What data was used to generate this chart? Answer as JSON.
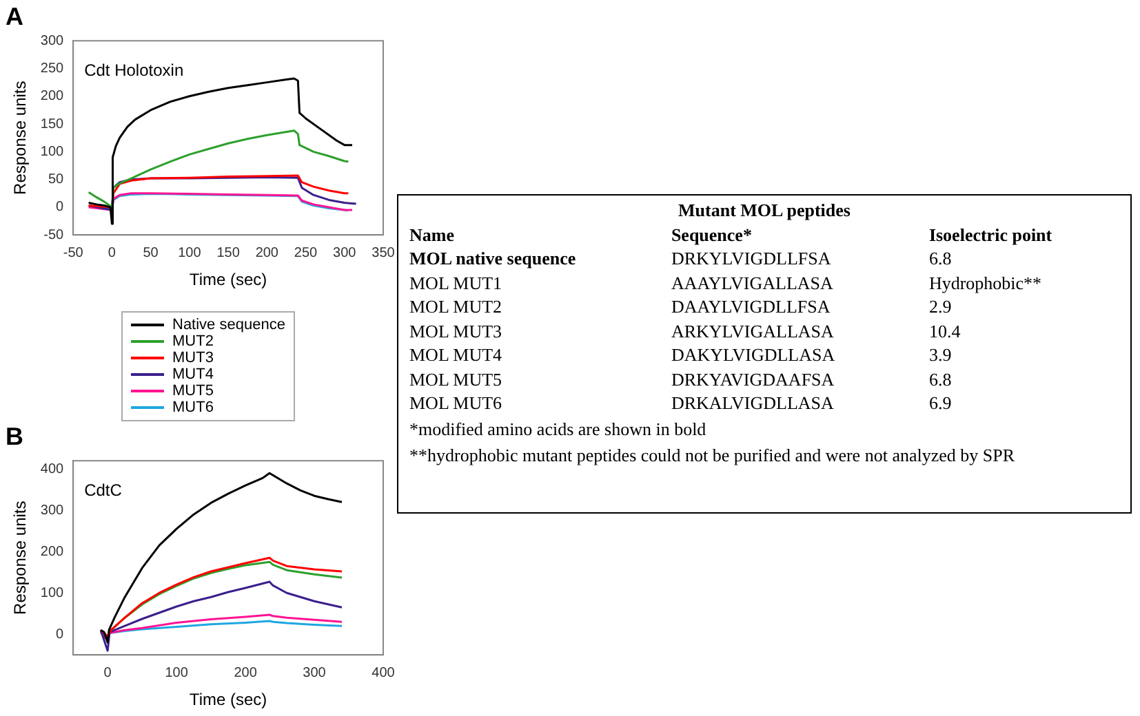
{
  "chart_data": [
    {
      "type": "line",
      "title": "A",
      "xlabel": "Time (sec)",
      "ylabel": "Response units",
      "annotations": [
        "Cdt Holotoxin"
      ],
      "xlim": [
        -50,
        350
      ],
      "xticks": [
        -50,
        0,
        50,
        100,
        150,
        200,
        250,
        300,
        350
      ],
      "ylim": [
        -50,
        300
      ],
      "yticks": [
        -50,
        0,
        50,
        100,
        150,
        200,
        250,
        300
      ],
      "legend": "bottom",
      "grid": false,
      "marker": "none",
      "series": [
        {
          "name": "Native sequence",
          "color": "#000000",
          "x": [
            -30,
            -20,
            -10,
            -2,
            0,
            1,
            5,
            10,
            20,
            30,
            50,
            75,
            100,
            125,
            150,
            175,
            200,
            225,
            235,
            240,
            242,
            250,
            270,
            290,
            300,
            310
          ],
          "values": [
            8,
            5,
            3,
            0,
            -30,
            90,
            110,
            125,
            145,
            158,
            175,
            190,
            200,
            208,
            215,
            220,
            225,
            230,
            232,
            228,
            170,
            160,
            140,
            120,
            112,
            112
          ]
        },
        {
          "name": "MUT2",
          "color": "#2ca02c",
          "x": [
            -30,
            -20,
            -10,
            0,
            2,
            10,
            25,
            50,
            75,
            100,
            125,
            150,
            175,
            200,
            235,
            240,
            242,
            260,
            280,
            300,
            305
          ],
          "values": [
            27,
            18,
            10,
            0,
            35,
            43,
            52,
            68,
            82,
            95,
            105,
            115,
            123,
            130,
            138,
            132,
            112,
            100,
            92,
            83,
            82
          ]
        },
        {
          "name": "MUT3",
          "color": "#ff0000",
          "x": [
            -30,
            0,
            2,
            10,
            25,
            50,
            100,
            150,
            200,
            240,
            245,
            260,
            280,
            300,
            305
          ],
          "values": [
            3,
            0,
            25,
            42,
            48,
            52,
            53,
            55,
            56,
            57,
            45,
            37,
            30,
            25,
            25
          ]
        },
        {
          "name": "MUT4",
          "color": "#3b1f8c",
          "x": [
            -30,
            0,
            2,
            10,
            25,
            50,
            100,
            150,
            200,
            240,
            245,
            260,
            280,
            300,
            315
          ],
          "values": [
            3,
            -5,
            35,
            45,
            50,
            52,
            52,
            53,
            54,
            53,
            35,
            22,
            13,
            8,
            6
          ]
        },
        {
          "name": "MUT5",
          "color": "#ff1493",
          "x": [
            -30,
            0,
            2,
            10,
            25,
            50,
            100,
            150,
            200,
            240,
            245,
            260,
            280,
            300,
            310
          ],
          "values": [
            0,
            -5,
            15,
            22,
            25,
            25,
            24,
            23,
            22,
            21,
            12,
            5,
            0,
            -5,
            -5
          ]
        },
        {
          "name": "MUT6",
          "color": "#1ea7e1",
          "x": [
            -30,
            0,
            2,
            10,
            25,
            50,
            100,
            150,
            200,
            240,
            245,
            260,
            280,
            300,
            305
          ],
          "values": [
            1,
            -3,
            13,
            20,
            23,
            24,
            23,
            22,
            21,
            20,
            10,
            3,
            -2,
            -5,
            -6
          ]
        }
      ]
    },
    {
      "type": "line",
      "title": "B",
      "xlabel": "Time (sec)",
      "ylabel": "Response units",
      "annotations": [
        "CdtC"
      ],
      "xlim": [
        -50,
        400
      ],
      "xticks": [
        0,
        100,
        200,
        300,
        400
      ],
      "ylim": [
        -50,
        420
      ],
      "yticks": [
        0,
        100,
        200,
        300,
        400
      ],
      "grid": false,
      "marker": "none",
      "series": [
        {
          "color": "#000000",
          "x": [
            -10,
            -5,
            0,
            2,
            10,
            25,
            50,
            75,
            100,
            125,
            150,
            175,
            200,
            225,
            235,
            240,
            260,
            280,
            300,
            320,
            340
          ],
          "values": [
            10,
            5,
            -20,
            10,
            40,
            90,
            160,
            215,
            255,
            290,
            318,
            340,
            360,
            378,
            390,
            385,
            365,
            348,
            335,
            327,
            320
          ]
        },
        {
          "color": "#ff0000",
          "x": [
            -10,
            0,
            5,
            25,
            50,
            75,
            100,
            125,
            150,
            175,
            200,
            235,
            240,
            260,
            300,
            340
          ],
          "values": [
            10,
            -5,
            10,
            40,
            75,
            100,
            120,
            138,
            152,
            162,
            172,
            185,
            178,
            165,
            157,
            152
          ]
        },
        {
          "color": "#2ca02c",
          "x": [
            5,
            25,
            50,
            75,
            100,
            125,
            150,
            175,
            200,
            235,
            240,
            260,
            300,
            340
          ],
          "values": [
            10,
            40,
            72,
            97,
            117,
            135,
            148,
            158,
            167,
            175,
            168,
            155,
            145,
            137
          ]
        },
        {
          "color": "#3b1f8c",
          "x": [
            -10,
            0,
            3,
            25,
            50,
            75,
            100,
            125,
            150,
            175,
            200,
            235,
            240,
            260,
            300,
            340
          ],
          "values": [
            10,
            -40,
            5,
            20,
            37,
            52,
            67,
            80,
            90,
            102,
            112,
            127,
            118,
            100,
            80,
            65
          ]
        },
        {
          "color": "#ff1493",
          "x": [
            -10,
            0,
            3,
            25,
            50,
            100,
            150,
            200,
            235,
            240,
            260,
            300,
            340
          ],
          "values": [
            5,
            -15,
            3,
            10,
            15,
            28,
            36,
            42,
            47,
            44,
            40,
            35,
            30
          ]
        },
        {
          "color": "#1ea7e1",
          "x": [
            -10,
            0,
            3,
            25,
            50,
            100,
            150,
            200,
            235,
            240,
            260,
            300,
            340
          ],
          "values": [
            5,
            -5,
            3,
            8,
            12,
            18,
            24,
            28,
            32,
            30,
            27,
            23,
            20
          ]
        }
      ]
    },
    {
      "type": "other",
      "title": "Mutant MOL peptides",
      "annotations": [
        "Name",
        "Sequence*",
        "Isoelectric point",
        "MOL native sequence",
        "DRKYLVIGDLLFSA",
        "6.8",
        "MOL MUT1",
        "AAAYLVIGALLASA",
        "Hydrophobic**",
        "MOL MUT2",
        "DAAYLVIGDLLFSA",
        "2.9",
        "MOL MUT3",
        "ARKYLVIGALLASA",
        "10.4",
        "MOL MUT4",
        "DAKYLVIGDLLASA",
        "3.9",
        "MOL MUT5",
        "DRKYAVIGDAAFSA",
        "6.8",
        "MOL MUT6",
        "DRKALVIGDLLASA",
        "6.9",
        "*modified amino acids are shown in bold",
        "**hydrophobic mutant peptides could not be purified and were not analyzed by SPR"
      ]
    }
  ]
}
